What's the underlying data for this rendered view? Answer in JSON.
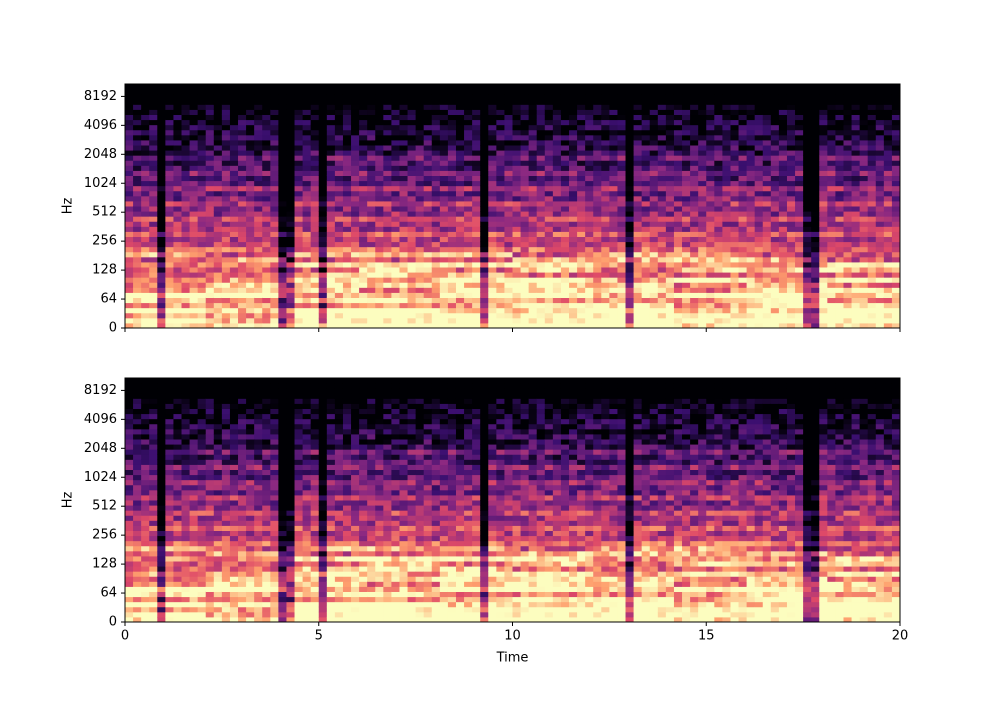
{
  "chart_data": [
    {
      "type": "spectrogram",
      "ylabel": "Hz",
      "yscale": "symlog",
      "xlim": [
        0,
        20
      ],
      "xticks": [
        0,
        5,
        10,
        15,
        20
      ],
      "xtick_labels": false,
      "ylim": [
        0,
        11025
      ],
      "yticks": [
        0,
        64,
        128,
        256,
        512,
        1024,
        2048,
        4096,
        8192
      ]
    },
    {
      "type": "spectrogram",
      "ylabel": "Hz",
      "xlabel": "Time",
      "yscale": "symlog",
      "xlim": [
        0,
        20
      ],
      "xticks": [
        0,
        5,
        10,
        15,
        20
      ],
      "xtick_labels": true,
      "ylim": [
        0,
        11025
      ],
      "yticks": [
        0,
        64,
        128,
        256,
        512,
        1024,
        2048,
        4096,
        8192
      ]
    }
  ]
}
